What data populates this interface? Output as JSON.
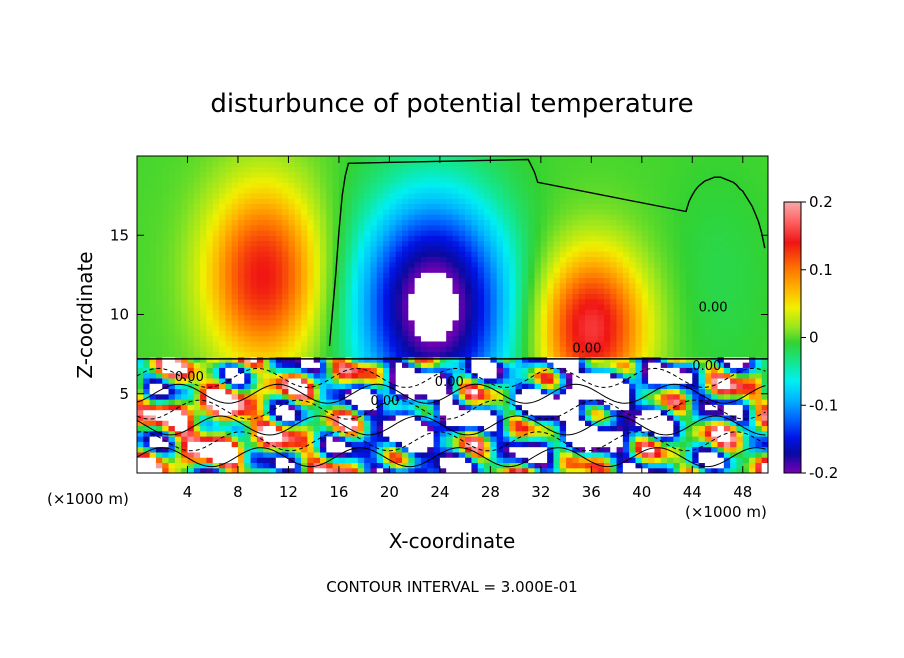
{
  "chart_data": {
    "type": "heatmap",
    "title": "disturbunce of potential temperature",
    "xlabel": "X-coordinate",
    "ylabel": "Z-coordinate",
    "x_unit_left": "(×1000 m)",
    "x_unit_right": "(×1000 m)",
    "x_ticks": [
      "4",
      "8",
      "12",
      "16",
      "20",
      "24",
      "28",
      "32",
      "36",
      "40",
      "44",
      "48"
    ],
    "x_tick_values": [
      4,
      8,
      12,
      16,
      20,
      24,
      28,
      32,
      36,
      40,
      44,
      48
    ],
    "y_ticks": [
      "5",
      "10",
      "15"
    ],
    "y_tick_values": [
      5,
      10,
      15
    ],
    "xlim": [
      0,
      50
    ],
    "ylim": [
      0,
      20
    ],
    "colorbar": {
      "ticks": [
        "0.2",
        "0.1",
        "0",
        "-0.1",
        "-0.2"
      ],
      "tick_values": [
        0.2,
        0.1,
        0,
        -0.1,
        -0.2
      ],
      "range": [
        -0.2,
        0.2
      ]
    },
    "footer": "CONTOUR INTERVAL = 3.000E-01",
    "contour_labels": [
      "0.00",
      "0.00",
      "0.00",
      "0.00",
      "0.00",
      "0.00"
    ],
    "layer_boundary_z": 7.2,
    "features": [
      {
        "kind": "warm",
        "x": 10,
        "z": 12,
        "peak": 0.13
      },
      {
        "kind": "cold",
        "x": 23,
        "z": 10,
        "peak": -0.2
      },
      {
        "kind": "warm",
        "x": 36,
        "z": 9.5,
        "peak": 0.14
      }
    ]
  }
}
